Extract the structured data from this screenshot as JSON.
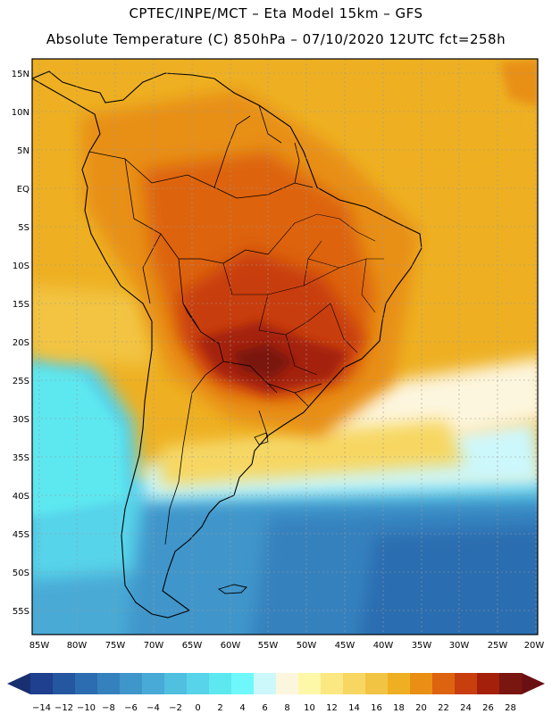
{
  "header": {
    "line1": "CPTEC/INPE/MCT –  Eta Model 15km – GFS",
    "line2": "Absolute Temperature (C) 850hPa – 07/10/2020 12UTC fct=258h"
  },
  "map": {
    "lat_labels": [
      "15N",
      "10N",
      "5N",
      "EQ",
      "5S",
      "10S",
      "15S",
      "20S",
      "25S",
      "30S",
      "35S",
      "40S",
      "45S",
      "50S",
      "55S"
    ],
    "lon_labels": [
      "85W",
      "80W",
      "75W",
      "70W",
      "65W",
      "60W",
      "55W",
      "50W",
      "45W",
      "40W",
      "35W",
      "30W",
      "25W",
      "20W"
    ]
  },
  "colorbar": {
    "labels": [
      "-14",
      "-12",
      "-10",
      "-8",
      "-6",
      "-4",
      "-2",
      "0",
      "2",
      "4",
      "6",
      "8",
      "10",
      "12",
      "14",
      "16",
      "18",
      "20",
      "22",
      "24",
      "26",
      "28"
    ],
    "colors": [
      "#1f3f8f",
      "#24579f",
      "#2b6db0",
      "#3581be",
      "#3f96cb",
      "#48aad6",
      "#50bfe0",
      "#57d4ea",
      "#5de8f0",
      "#6ff8fc",
      "#ccf7fb",
      "#fdf6de",
      "#fdf7a8",
      "#fbe882",
      "#f7d762",
      "#f2c443",
      "#eeb022",
      "#e88f14",
      "#dd6310",
      "#c83e0c",
      "#a4200a",
      "#7a1610"
    ],
    "under_color": "#1a2f70",
    "over_color": "#6a0f12"
  }
}
